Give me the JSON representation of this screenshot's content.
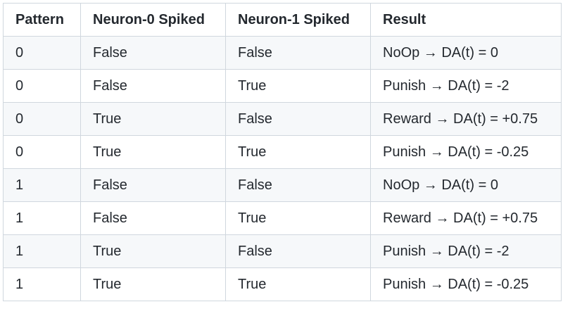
{
  "table": {
    "headers": [
      "Pattern",
      "Neuron-0 Spiked",
      "Neuron-1 Spiked",
      "Result"
    ],
    "rows": [
      [
        "0",
        "False",
        "False",
        "NoOp → DA(t) = 0"
      ],
      [
        "0",
        "False",
        "True",
        "Punish → DA(t) = -2"
      ],
      [
        "0",
        "True",
        "False",
        "Reward → DA(t) = +0.75"
      ],
      [
        "0",
        "True",
        "True",
        "Punish → DA(t) = -0.25"
      ],
      [
        "1",
        "False",
        "False",
        "NoOp → DA(t) = 0"
      ],
      [
        "1",
        "False",
        "True",
        "Reward → DA(t) = +0.75"
      ],
      [
        "1",
        "True",
        "False",
        "Punish → DA(t) = -2"
      ],
      [
        "1",
        "True",
        "True",
        "Punish → DA(t) = -0.25"
      ]
    ]
  }
}
